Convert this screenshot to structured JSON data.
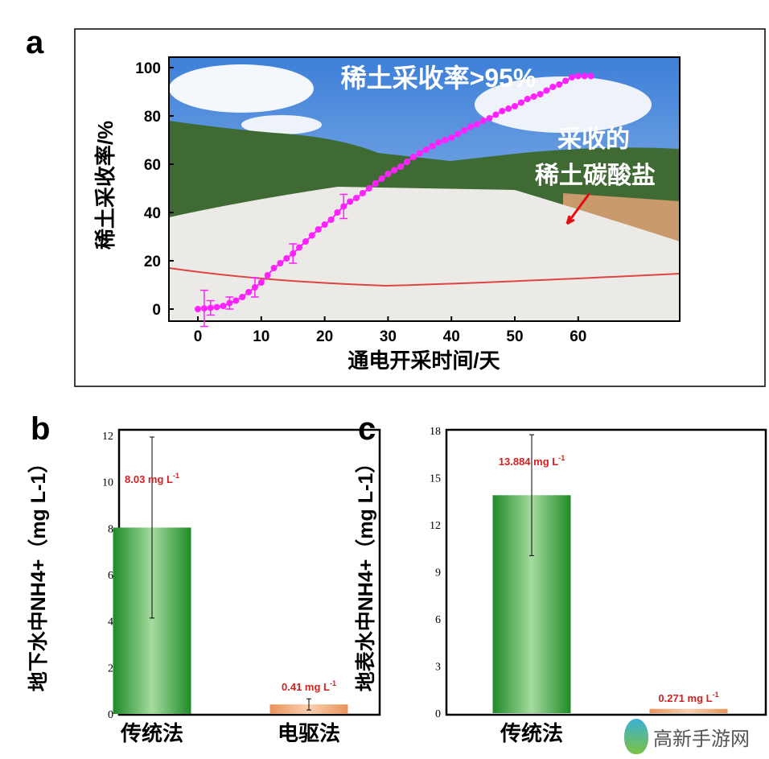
{
  "chart_data": [
    {
      "panel_label": "a",
      "type": "scatter",
      "xlabel": "通电开采时间/天",
      "ylabel": "稀土采收率/%",
      "xlim": [
        -4,
        64
      ],
      "ylim": [
        -4,
        104
      ],
      "xticks": [
        0,
        10,
        20,
        30,
        40,
        50,
        60
      ],
      "yticks": [
        0,
        20,
        40,
        60,
        80,
        100
      ],
      "annotations": [
        "稀土采收率>95%",
        "采收的",
        "稀土碳酸盐"
      ],
      "marker_color": "#ff22ff",
      "x": [
        0,
        1,
        2,
        3,
        4,
        5,
        6,
        7,
        8,
        9,
        10,
        11,
        12,
        13,
        14,
        15,
        16,
        17,
        18,
        19,
        20,
        21,
        22,
        23,
        24,
        25,
        26,
        27,
        28,
        29,
        30,
        31,
        32,
        33,
        34,
        35,
        36,
        37,
        38,
        39,
        40,
        41,
        42,
        43,
        44,
        45,
        46,
        47,
        48,
        49,
        50,
        51,
        52,
        53,
        54,
        55,
        56,
        57,
        58,
        59,
        60,
        61,
        62
      ],
      "y": [
        0,
        0.3,
        0.5,
        0.8,
        1.3,
        2.5,
        3.5,
        5,
        7,
        9,
        11,
        14,
        17,
        19,
        21,
        23,
        25.5,
        28,
        30.5,
        33,
        35,
        37,
        40,
        42.5,
        44.5,
        46,
        48,
        50,
        52,
        54,
        56,
        57.5,
        59,
        61,
        63,
        64.5,
        66,
        67.5,
        69,
        70,
        71,
        72.5,
        74,
        75.5,
        76.5,
        78,
        79,
        80.5,
        82,
        83,
        84,
        85.5,
        87,
        88,
        89,
        90.5,
        92,
        93,
        94.5,
        96,
        96.5,
        96.5,
        96.5
      ],
      "error_bars": [
        {
          "x": 1,
          "err": 7.5
        },
        {
          "x": 2,
          "err": 3
        },
        {
          "x": 5,
          "err": 2.5
        },
        {
          "x": 9,
          "err": 4
        },
        {
          "x": 15,
          "err": 4
        },
        {
          "x": 23,
          "err": 5
        }
      ]
    },
    {
      "panel_label": "b",
      "type": "bar",
      "ylabel": "地下水中NH4+（mg L-1）",
      "ylim": [
        0,
        12
      ],
      "yticks": [
        0,
        2,
        4,
        6,
        8,
        10,
        12
      ],
      "categories": [
        "传统法",
        "电驱法"
      ],
      "values": [
        8.03,
        0.41
      ],
      "errors": [
        3.9,
        0.24
      ],
      "data_labels": [
        "8.03 mg L",
        "0.41 mg L"
      ],
      "colors": [
        "#1e9a2a",
        "#f2a772"
      ]
    },
    {
      "panel_label": "c",
      "type": "bar",
      "ylabel": "地表水中NH4+（mg L-1）",
      "ylim": [
        0,
        18
      ],
      "yticks": [
        0,
        3,
        6,
        9,
        12,
        15,
        18
      ],
      "categories": [
        "传统法",
        ""
      ],
      "values": [
        13.884,
        0.271
      ],
      "errors": [
        3.85,
        0
      ],
      "data_labels": [
        "13.884 mg L",
        "0.271 mg L"
      ],
      "colors": [
        "#1e9a2a",
        "#f2a772"
      ]
    }
  ],
  "label_color": "#d42020",
  "watermark": "高新手游网"
}
